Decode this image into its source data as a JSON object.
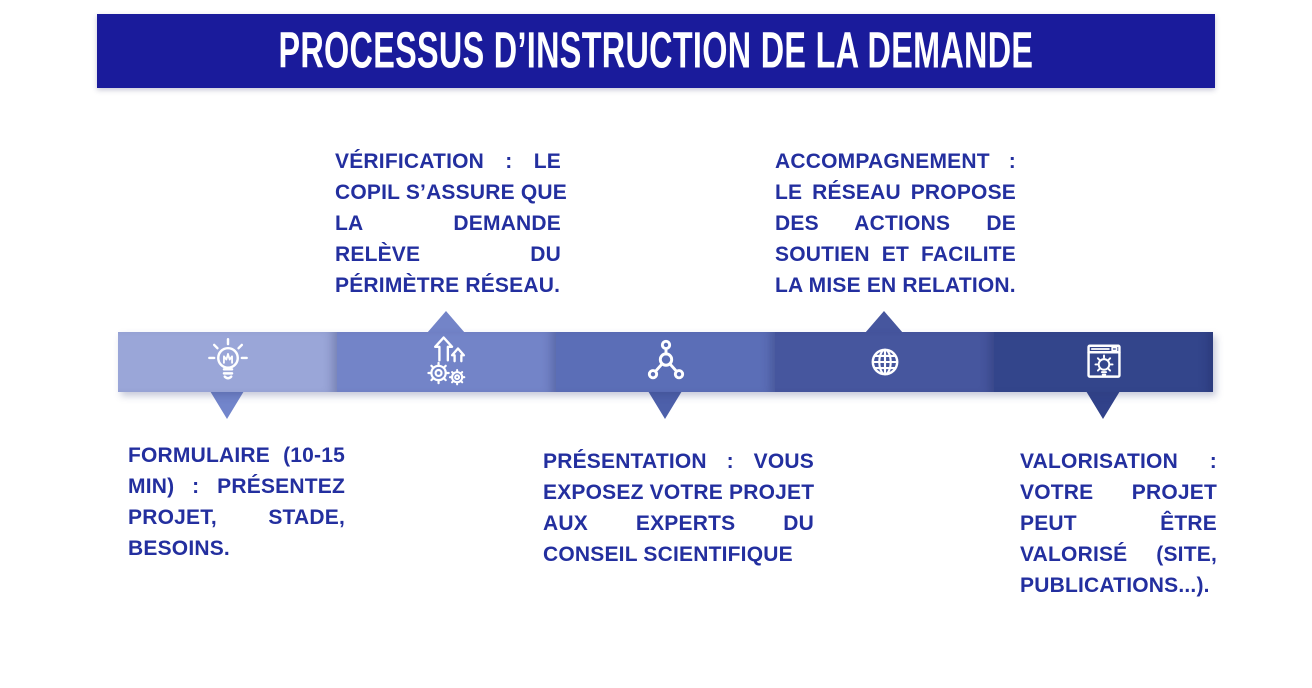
{
  "header": {
    "title": "PROCESSUS D’INSTRUCTION DE LA DEMANDE",
    "background": "#1a1b9b",
    "text_color": "#ffffff"
  },
  "palette": {
    "note_text": "#232f9f",
    "page_background": "#ffffff"
  },
  "timeline": {
    "steps": [
      {
        "name": "formulaire",
        "icon": "lightbulb-icon",
        "segment_color": "#9aa6d8",
        "arrow_direction": "down",
        "arrow_color": "#7285cb",
        "note": {
          "position": "bottom",
          "lines": [
            "FORMULAIRE (10-15",
            "MIN) : PRÉSENTEZ",
            "PROJET, STADE,",
            "BESOINS."
          ]
        }
      },
      {
        "name": "verification",
        "icon": "growth-gears-icon",
        "segment_color": "#7384c8",
        "arrow_direction": "up",
        "arrow_color": "#7384c8",
        "note": {
          "position": "top",
          "lines": [
            "VÉRIFICATION : LE",
            "COPIL S’ASSURE QUE",
            "LA DEMANDE",
            "RELÈVE DU",
            "PÉRIMÈTRE RÉSEAU."
          ]
        }
      },
      {
        "name": "presentation",
        "icon": "network-nodes-icon",
        "segment_color": "#5b6eb7",
        "arrow_direction": "down",
        "arrow_color": "#4d60aa",
        "note": {
          "position": "bottom",
          "lines": [
            "PRÉSENTATION : VOUS",
            "EXPOSEZ VOTRE PROJET",
            "AUX EXPERTS DU",
            "CONSEIL SCIENTIFIQUE"
          ]
        }
      },
      {
        "name": "accompagnement",
        "icon": "globe-icon",
        "segment_color": "#46569e",
        "arrow_direction": "up",
        "arrow_color": "#46569e",
        "note": {
          "position": "top",
          "lines": [
            "ACCOMPAGNEMENT :",
            "LE RÉSEAU PROPOSE",
            "DES ACTIONS DE",
            "SOUTIEN ET FACILITE",
            "LA MISE EN RELATION."
          ]
        }
      },
      {
        "name": "valorisation",
        "icon": "browser-idea-icon",
        "segment_color": "#33458b",
        "arrow_direction": "down",
        "arrow_color": "#31428a",
        "note": {
          "position": "bottom",
          "lines": [
            "VALORISATION :",
            "VOTRE PROJET",
            "PEUT ÊTRE",
            "VALORISÉ (SITE,",
            "PUBLICATIONS...)."
          ]
        }
      }
    ]
  }
}
